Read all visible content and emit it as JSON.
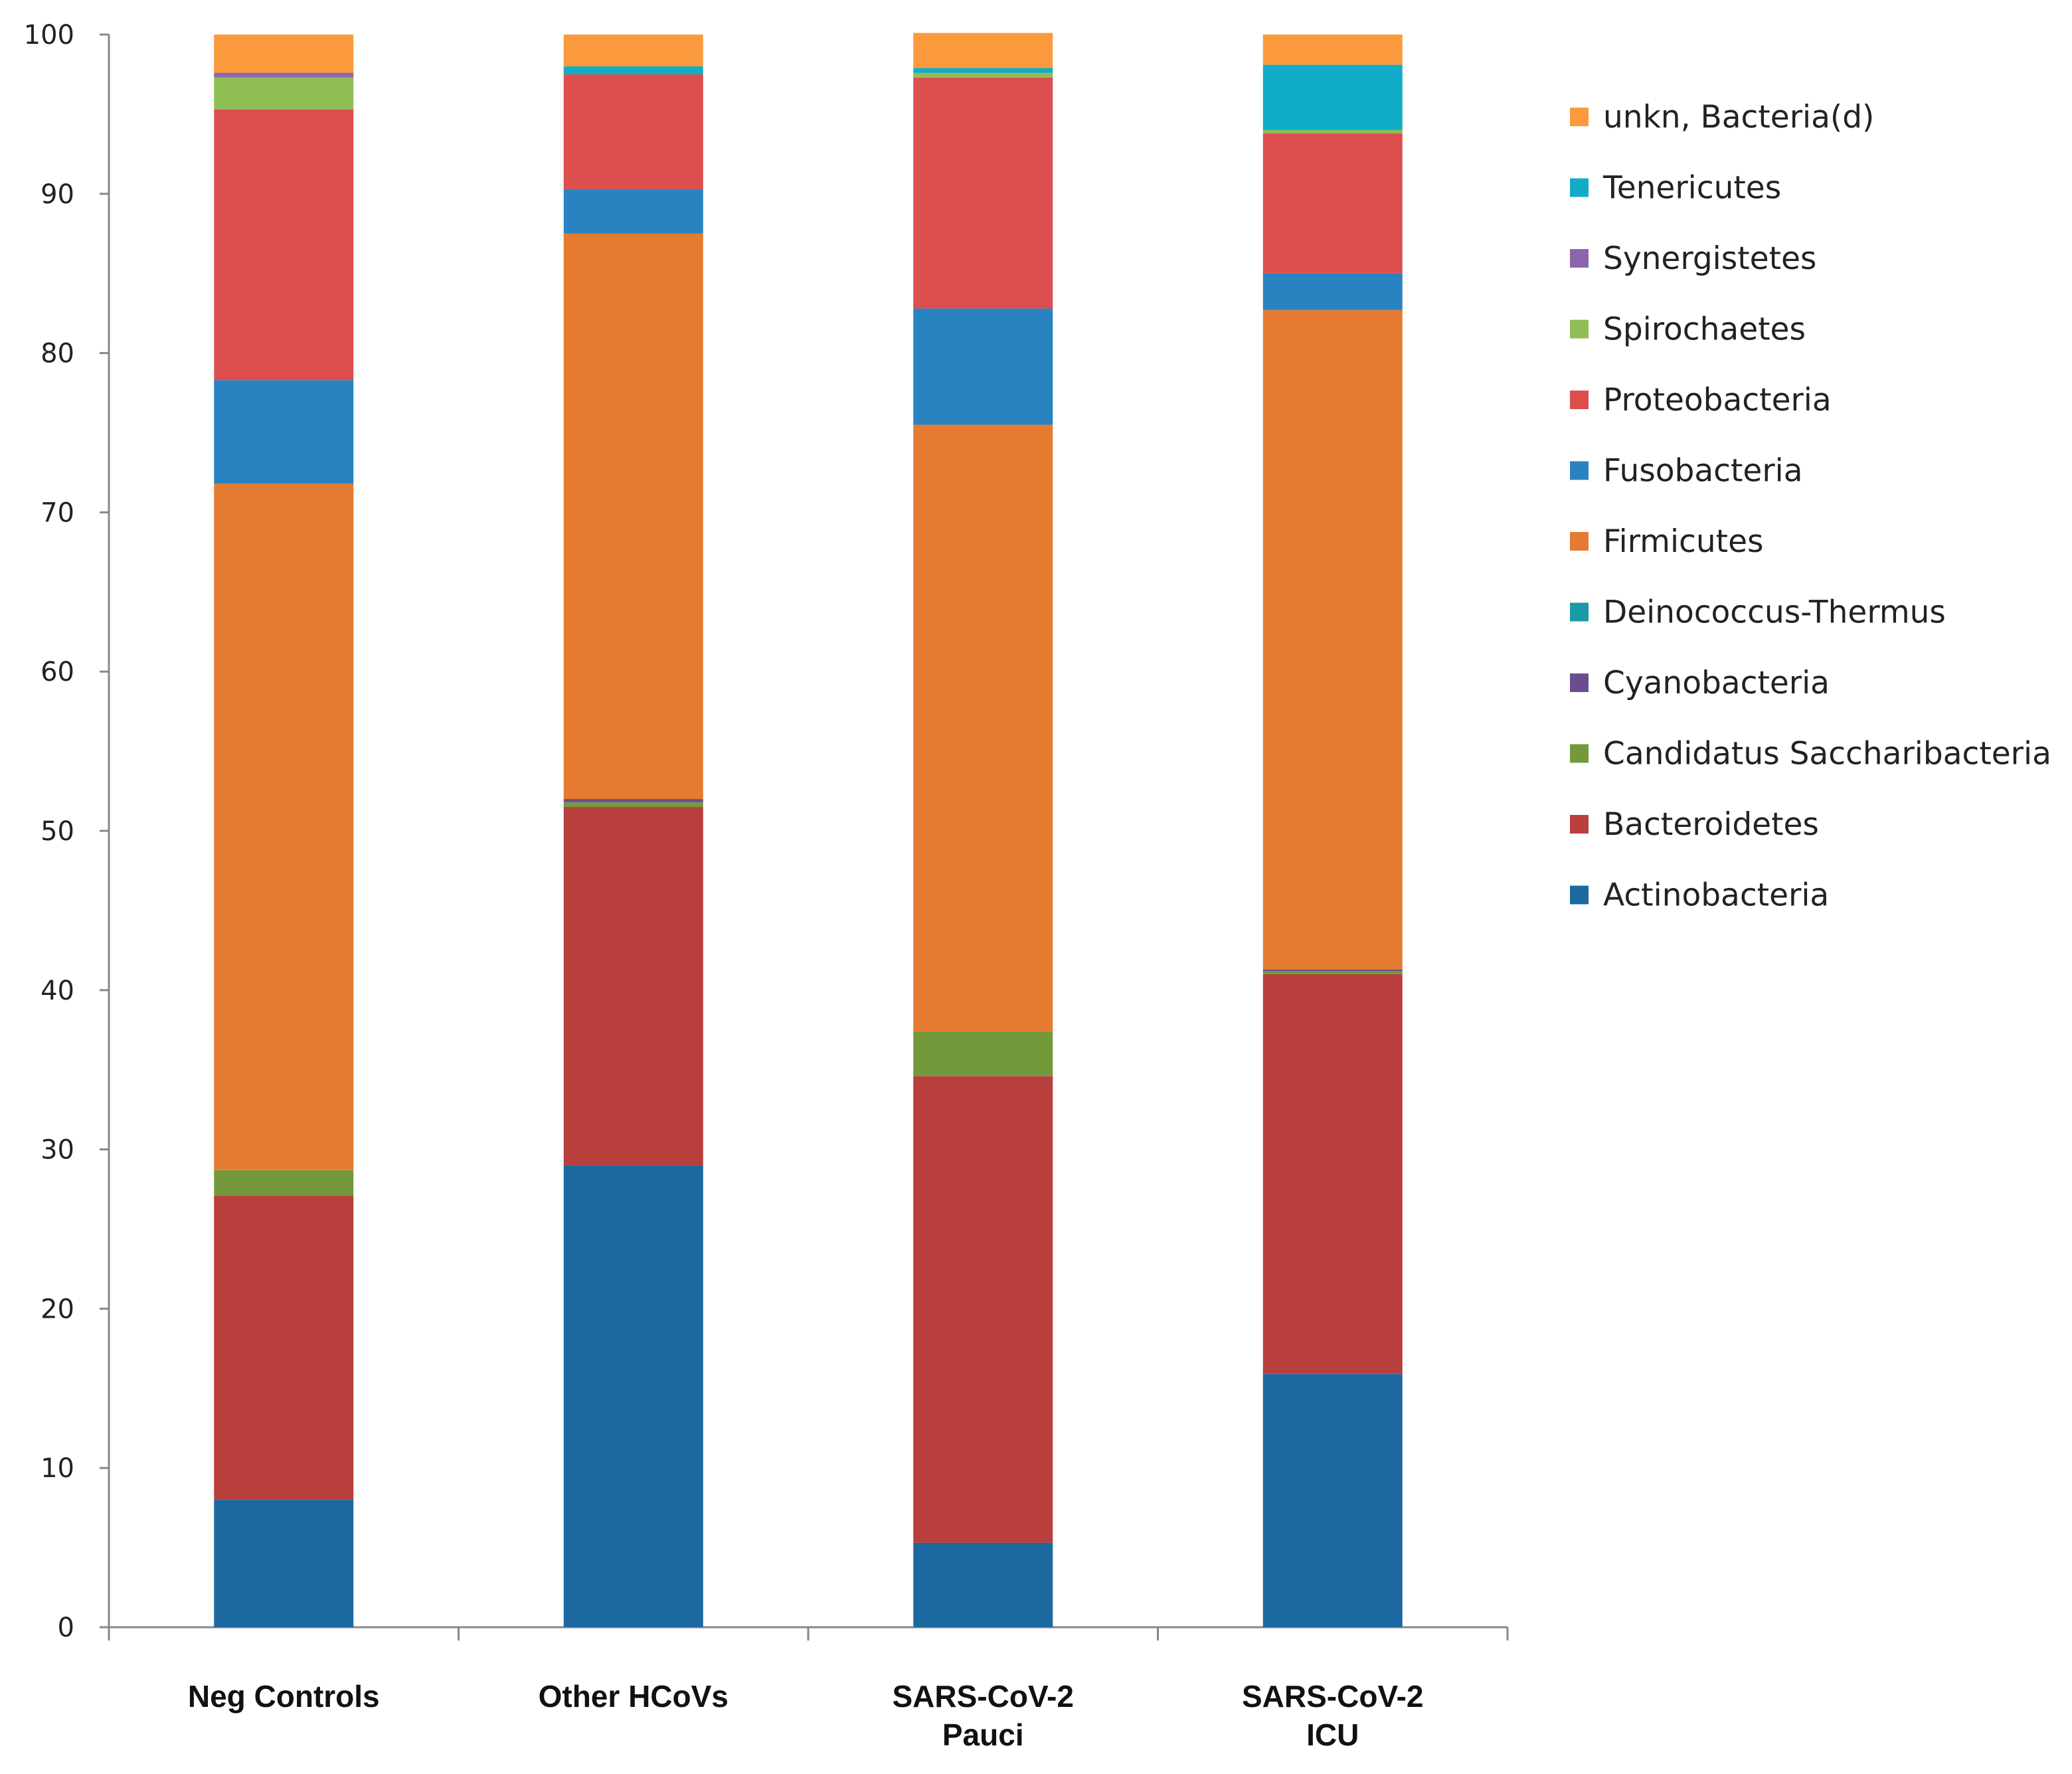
{
  "chart_data": {
    "type": "bar",
    "stacked": true,
    "title": "",
    "xlabel": "",
    "ylabel": "",
    "ylim": [
      0,
      100
    ],
    "yticks": [
      0,
      10,
      20,
      30,
      40,
      50,
      60,
      70,
      80,
      90,
      100
    ],
    "grid": false,
    "legend_position": "right",
    "categories": [
      [
        "Neg Controls"
      ],
      [
        "Other HCoVs"
      ],
      [
        "SARS-CoV-2",
        "Pauci"
      ],
      [
        "SARS-CoV-2",
        "ICU"
      ]
    ],
    "series": [
      {
        "name": "Actinobacteria",
        "color": "#1c69a0",
        "values": [
          8.0,
          29.0,
          5.3,
          15.9
        ]
      },
      {
        "name": "Bacteroidetes",
        "color": "#b93f3c",
        "values": [
          19.1,
          22.5,
          29.3,
          25.1
        ]
      },
      {
        "name": "Candidatus Saccharibacteria",
        "color": "#73993b",
        "values": [
          1.6,
          0.3,
          2.8,
          0.2
        ]
      },
      {
        "name": "Cyanobacteria",
        "color": "#6b4d8e",
        "values": [
          0.0,
          0.2,
          0.0,
          0.1
        ]
      },
      {
        "name": "Deinococcus-Thermus",
        "color": "#1a9aa6",
        "values": [
          0.0,
          0.0,
          0.0,
          0.0
        ]
      },
      {
        "name": "Firmicutes",
        "color": "#e47b30",
        "values": [
          43.1,
          35.5,
          38.1,
          41.4
        ]
      },
      {
        "name": "Fusobacteria",
        "color": "#2a83c1",
        "values": [
          6.5,
          2.8,
          7.3,
          2.3
        ]
      },
      {
        "name": "Proteobacteria",
        "color": "#dd4f4f",
        "values": [
          17.0,
          7.2,
          14.5,
          8.8
        ]
      },
      {
        "name": "Spirochaetes",
        "color": "#8fbe55",
        "values": [
          2.0,
          0.0,
          0.3,
          0.2
        ]
      },
      {
        "name": "Synergistetes",
        "color": "#8c66ad",
        "values": [
          0.3,
          0.0,
          0.0,
          0.0
        ]
      },
      {
        "name": "Tenericutes",
        "color": "#11adc8",
        "values": [
          0.0,
          0.5,
          0.3,
          4.1
        ]
      },
      {
        "name": "unkn, Bacteria(d)",
        "color": "#fb9a3c",
        "values": [
          2.4,
          2.0,
          2.2,
          1.9
        ]
      }
    ]
  }
}
